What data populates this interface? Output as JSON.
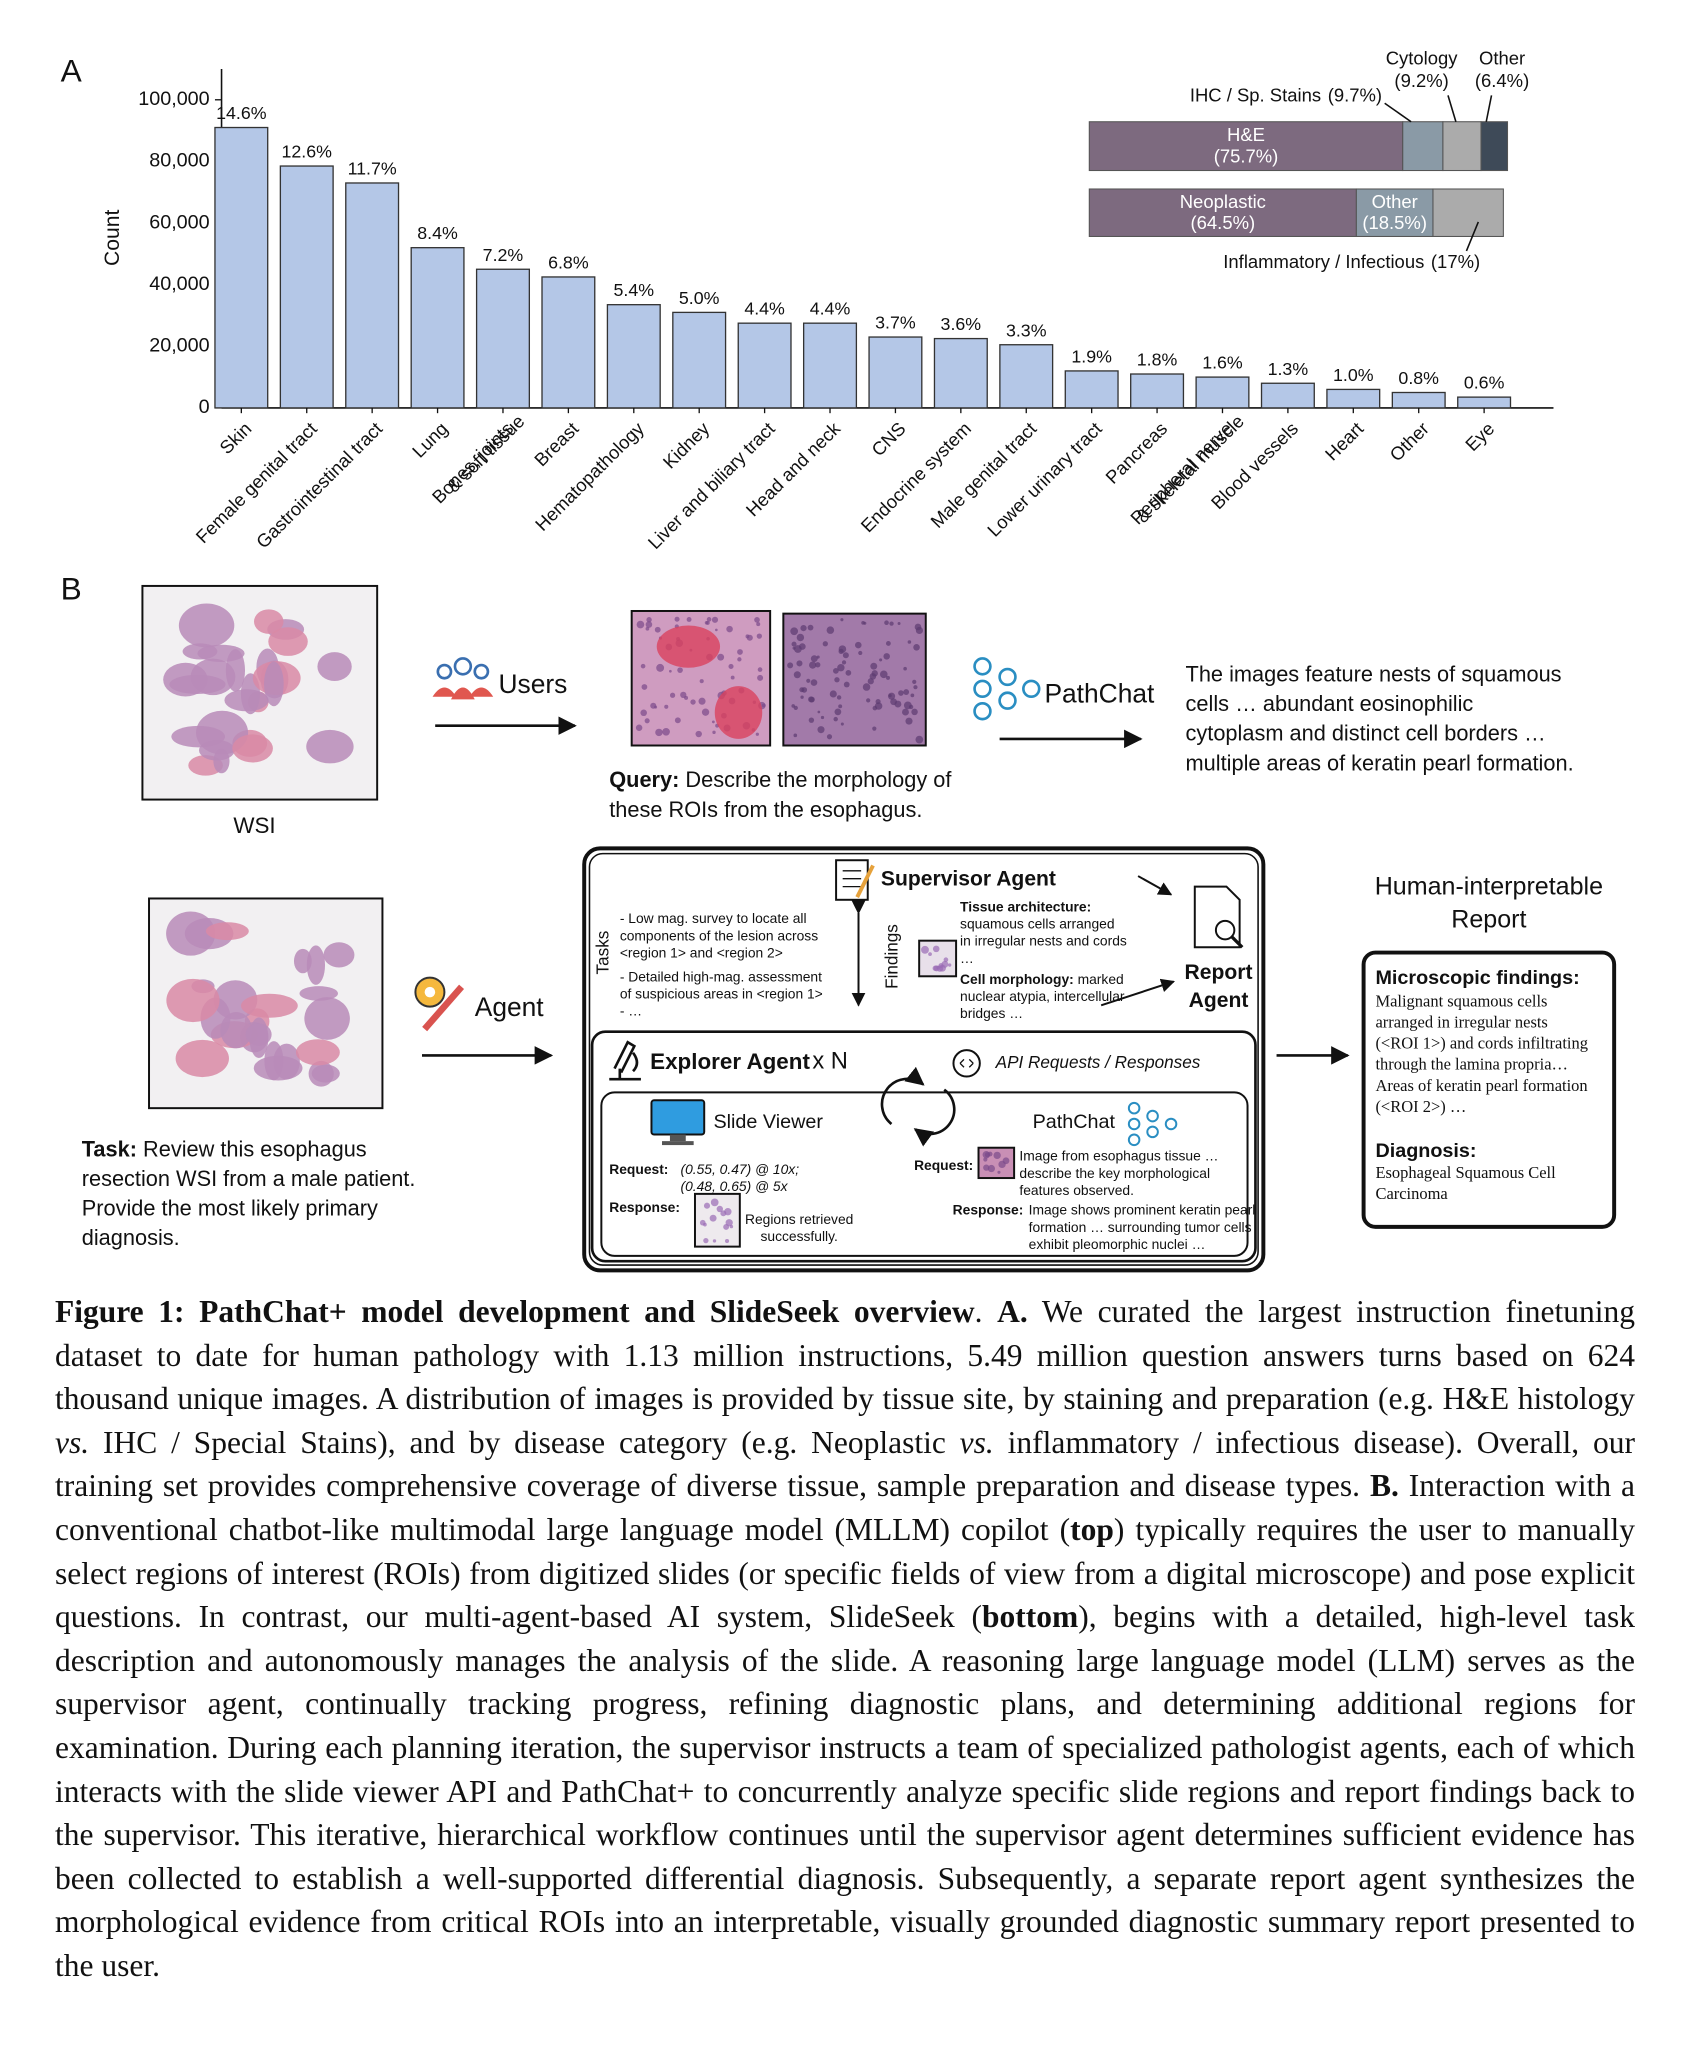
{
  "chart_data": [
    {
      "type": "bar",
      "panel": "A",
      "ylabel": "Count",
      "categories": [
        "Skin",
        "Female genital tract",
        "Gastrointestinal tract",
        "Lung",
        "Bones, joints\n& soft tissue",
        "Breast",
        "Hematopathology",
        "Kidney",
        "Liver and biliary tract",
        "Head and neck",
        "CNS",
        "Endocrine system",
        "Male genital tract",
        "Lower urinary tract",
        "Pancreas",
        "Peripheral nerve\n& skeletal muscle",
        "Blood vessels",
        "Heart",
        "Other",
        "Eye"
      ],
      "values": [
        91000,
        78500,
        73000,
        52000,
        45000,
        42500,
        33500,
        31000,
        27500,
        27500,
        23000,
        22500,
        20500,
        12000,
        11000,
        10000,
        8000,
        6000,
        5000,
        3500
      ],
      "share_labels": [
        "14.6%",
        "12.6%",
        "11.7%",
        "8.4%",
        "7.2%",
        "6.8%",
        "5.4%",
        "5.0%",
        "4.4%",
        "4.4%",
        "3.7%",
        "3.6%",
        "3.3%",
        "1.9%",
        "1.8%",
        "1.6%",
        "1.3%",
        "1.0%",
        "0.8%",
        "0.6%"
      ],
      "color": "#b4c7e7",
      "edgecolor": "#333333",
      "ylim": [
        0,
        110000
      ],
      "yticks": [
        0,
        {
          "value": 20000,
          "label": "20,000"
        },
        {
          "value": 40000,
          "label": "40,000"
        },
        {
          "value": 60000,
          "label": "60,000"
        },
        {
          "value": 80000,
          "label": "80,000"
        },
        {
          "value": 100000,
          "label": "100,000"
        }
      ]
    },
    {
      "type": "stacked_bar",
      "xlim": [
        0,
        100
      ],
      "series": [
        {
          "name": "H&E",
          "color": "#7d6a7f",
          "values": [
            75.7
          ],
          "value_labels": [
            "(75.7%)"
          ]
        },
        {
          "name": "IHC / Sp. Stains",
          "color": "#8a9aa6",
          "values": [
            9.7
          ],
          "value_labels": [
            "(9.7%)"
          ]
        },
        {
          "name": "Cytology",
          "color": "#ababab",
          "values": [
            9.2
          ],
          "value_labels": [
            "(9.2%)"
          ]
        },
        {
          "name": "Other",
          "color": "#3e4a58",
          "values": [
            6.4
          ],
          "value_labels": [
            "(6.4%)"
          ]
        }
      ]
    },
    {
      "type": "stacked_bar",
      "xlim": [
        0,
        100
      ],
      "series": [
        {
          "name": "Neoplastic",
          "color": "#7d6a7f",
          "values": [
            64.5
          ],
          "value_labels": [
            "(64.5%)"
          ]
        },
        {
          "name": "Other",
          "color": "#8a9aa6",
          "values": [
            18.5
          ],
          "value_labels": [
            "(18.5%)"
          ]
        },
        {
          "name": "Inflammatory / Infectious",
          "color": "#ababab",
          "values": [
            17
          ],
          "value_labels": [
            "(17%)"
          ]
        }
      ]
    }
  ],
  "diagram": {
    "panel": "B",
    "top": {
      "wsi_label": "WSI",
      "users": "Users",
      "query_label": "Query:",
      "query_lines": [
        " Describe the morphology of",
        "these ROIs from the esophagus."
      ],
      "pathchat": "PathChat",
      "response_lines": [
        "The images feature nests of squamous",
        "cells … abundant eosinophilic",
        "cytoplasm and distinct cell borders …",
        "multiple areas of keratin pearl formation."
      ]
    },
    "bottom": {
      "task_label": "Task:",
      "task_lines": [
        " Review this esophagus",
        "resection WSI from a male patient.",
        "Provide the most likely primary",
        "diagnosis."
      ],
      "agent": "Agent",
      "supervisor": "Supervisor Agent",
      "tasks_label": "Tasks",
      "findings_label": "Findings",
      "task_items": [
        "- Low mag. survey to locate all",
        "components of the lesion across",
        "<region 1> and <region 2>",
        "- Detailed high-mag. assessment",
        "of suspicious areas in <region 1>",
        "- …"
      ],
      "architecture_label": "Tissue architecture:",
      "architecture_lines": [
        "squamous cells arranged",
        "in irregular nests and cords",
        "…"
      ],
      "morphology_label": "Cell morphology:",
      "morphology_lines": [
        " marked",
        "nuclear atypia, intercellular",
        "bridges …"
      ],
      "report_agent": [
        "Report",
        "Agent"
      ],
      "explorer": "Explorer Agent",
      "multiplier": "x N",
      "api": "API Requests / Responses",
      "slide_viewer": "Slide Viewer",
      "pathchat": "PathChat",
      "request_label": "Request:",
      "request_lines": [
        "(0.55, 0.47) @ 10x;",
        "(0.48, 0.65) @ 5x"
      ],
      "response_label": "Response:",
      "response_lines": [
        "Regions retrieved",
        "successfully."
      ],
      "pc_request_label": "Request:",
      "pc_request_lines": [
        "Image from esophagus tissue …",
        "describe the key morphological",
        "features observed."
      ],
      "pc_response_label": "Response:",
      "pc_response_lines": [
        "Image shows prominent keratin pearl",
        "formation … surrounding tumor cells",
        "exhibit pleomorphic nuclei …"
      ],
      "report_title": [
        "Human-interpretable",
        "Report"
      ],
      "micro_label": "Microscopic findings:",
      "micro_lines": [
        "Malignant squamous cells",
        "arranged in irregular nests",
        "(<ROI 1>) and cords infiltrating",
        "through the lamina propria…",
        "Areas of keratin pearl formation",
        "(<ROI 2>) …"
      ],
      "diagnosis_label": "Diagnosis:",
      "diagnosis_lines": [
        "Esophageal Squamous Cell",
        "Carcinoma"
      ]
    }
  },
  "caption": {
    "runs": [
      "Figure 1: PathChat+ model development and SlideSeek overview",
      ".  ",
      "A.",
      " We curated the largest instruction finetuning dataset to date for human pathology with 1.13 million instructions, 5.49 million question answers turns based on 624 thousand unique images.  A distribution of images is provided by tissue site, by staining and preparation (e.g.  H&E histology ",
      "vs.",
      " IHC / Special Stains), and by disease category (e.g.  Neoplastic ",
      "vs.",
      " inflammatory / infectious disease).  Overall, our training set provides comprehensive coverage of diverse tissue, sample preparation and disease types.  ",
      "B.",
      " Interaction with a conventional chatbot-like multimodal large language model (MLLM) copilot (",
      "top",
      ") typically requires the user to manually select regions of interest (ROIs) from digitized slides (or specific fields of view from a digital microscope) and pose explicit questions.  In contrast, our multi-agent-based AI system, SlideSeek (",
      "bottom",
      "), begins with a detailed, high-level task description and autonomously manages the analysis of the slide.  A reasoning large language model (LLM) serves as the supervisor agent, continually tracking progress, refining diagnostic plans, and determining additional regions for examination.  During each planning iteration, the supervisor instructs a team of specialized pathologist agents, each of which interacts with the slide viewer API and PathChat+ to concurrently analyze specific slide regions and report findings back to the supervisor.  This iterative, hierarchical workflow continues until the supervisor agent determines sufficient evidence has been collected to establish a well-supported differential diagnosis.  Subsequently, a separate report agent synthesizes the morphological evidence from critical ROIs into an interpretable, visually grounded diagnostic summary report presented to the user."
    ]
  }
}
